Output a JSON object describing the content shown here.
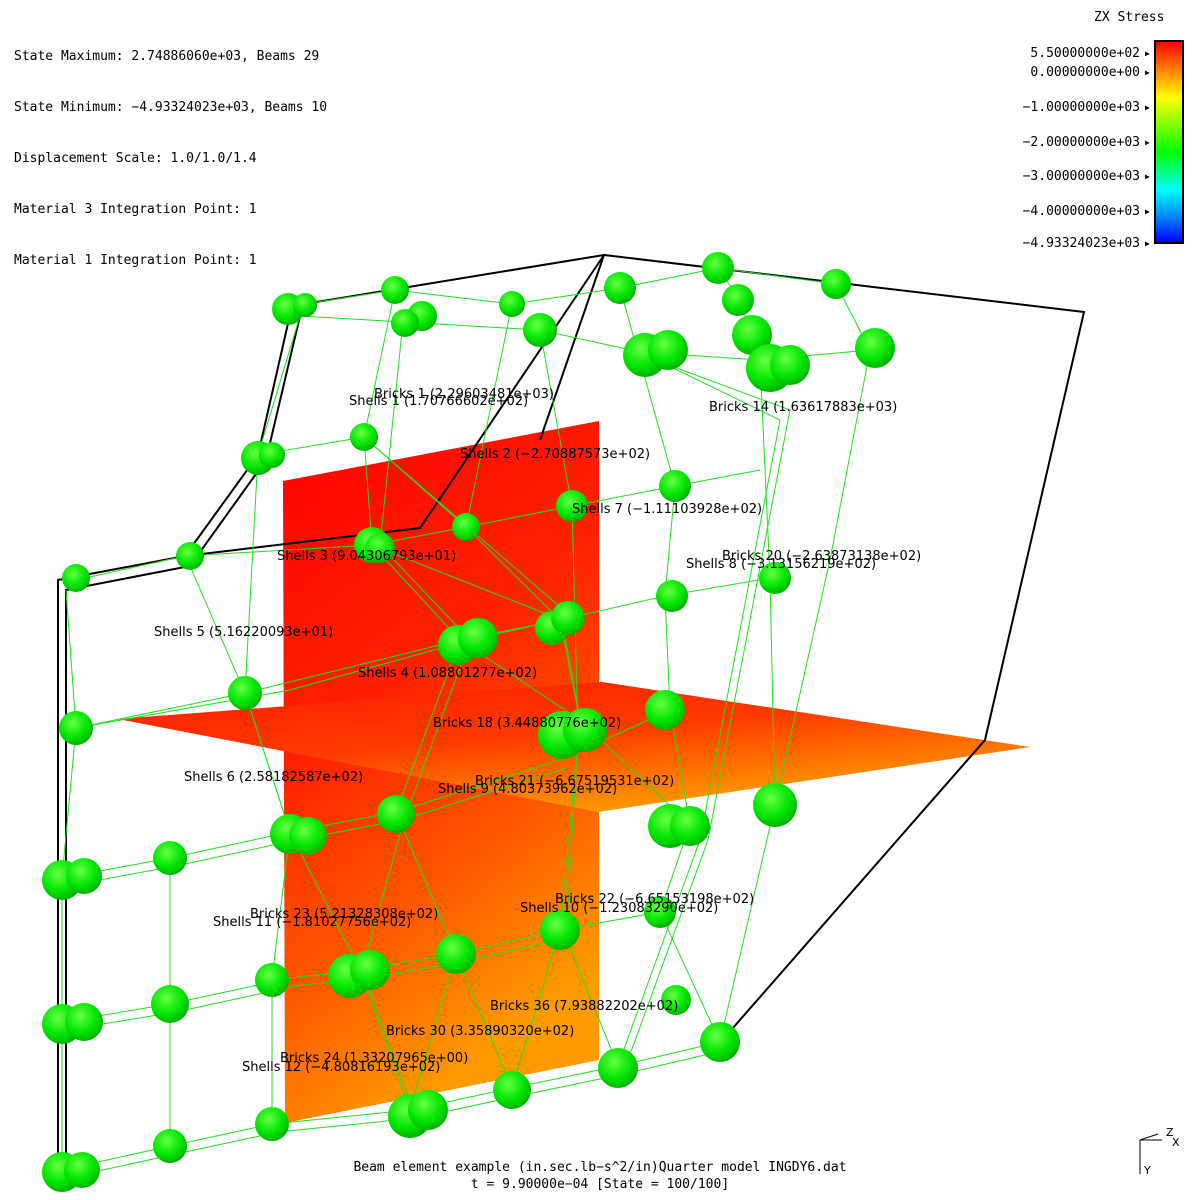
{
  "info": {
    "state_max": "State Maximum: 2.74886060e+03, Beams 29",
    "state_min": "State Minimum: −4.93324023e+03, Beams 10",
    "disp_scale": "Displacement Scale: 1.0/1.0/1.4",
    "mat3": "Material 3 Integration Point: 1",
    "mat1": "Material 1 Integration Point: 1"
  },
  "legend": {
    "title": "ZX Stress",
    "labels": [
      "5.50000000e+02",
      "0.00000000e+00",
      "−1.00000000e+03",
      "−2.00000000e+03",
      "−3.00000000e+03",
      "−4.00000000e+03",
      "−4.93324023e+03"
    ],
    "colors": {
      "max": "#ff0000",
      "mid": "#00ff00",
      "min": "#0000ff"
    }
  },
  "element_labels": [
    "Bricks 1 (2.29603481e+03)",
    "Shells 1 (1.70766602e+02)",
    "Bricks 14 (1.63617883e+03)",
    "Shells 2 (−2.70887573e+02)",
    "Shells 7 (−1.11103928e+02)",
    "Shells 3 (9.04306793e+01)",
    "Bricks 20 (−2.63873138e+02)",
    "Shells 8 (−3.13156219e+02)",
    "Shells 5 (5.16220093e+01)",
    "Shells 4 (1.08801277e+02)",
    "Bricks 18 (3.44880776e+02)",
    "Shells 6 (2.58182587e+02)",
    "Bricks 21 (−6.67519531e+02)",
    "Shells 9 (4.80373962e+02)",
    "Bricks 22 (−6.65153198e+02)",
    "Bricks 23 (5.21328308e+02)",
    "Shells 10 (−1.23083290e+02)",
    "Shells 11 (−1.81027756e+02)",
    "Bricks 36 (7.93882202e+02)",
    "Bricks 30 (3.35890320e+02)",
    "Bricks 24 (1.33207965e+00)",
    "Shells 12 (−4.80816193e+02)"
  ],
  "footer": {
    "title": "Beam element example (in.sec.lb−s^2/in)Quarter model INGDY6.dat",
    "time": "t = 9.90000e−04 [State = 100/100]"
  },
  "axes": {
    "z": "Z",
    "x": "X",
    "y": "Y"
  },
  "colors": {
    "node": "#00ee00",
    "outline": "#000000",
    "shell": "#ff0000"
  }
}
